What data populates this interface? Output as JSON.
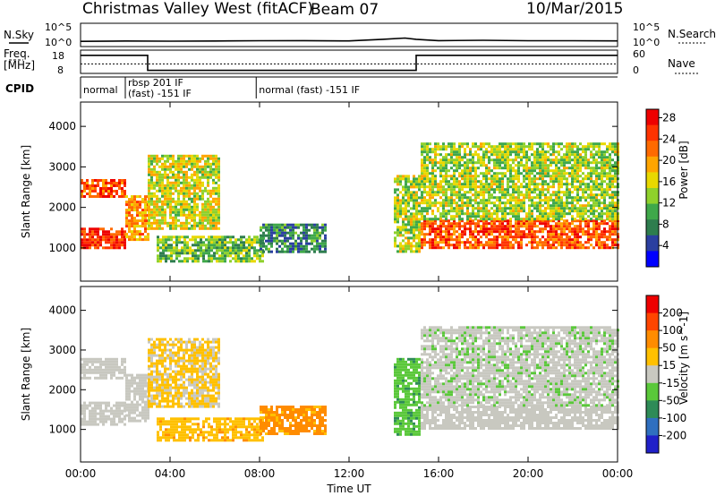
{
  "header": {
    "title": "Christmas Valley West (fitACF)",
    "beam": "Beam 07",
    "date": "10/Mar/2015"
  },
  "top_panels": {
    "nsky_label": "N.Sky",
    "nsearch_label": "N.Search",
    "noise_ticks": [
      "10^5",
      "10^0"
    ],
    "freq_label_1": "Freq.",
    "freq_label_2": "[MHz]",
    "freq_ticks": [
      "18",
      "8"
    ],
    "nave_label": "Nave",
    "nave_ticks": [
      "60",
      "0"
    ],
    "cpid_label": "CPID",
    "cpid_segments": [
      {
        "start": 0.0,
        "end": 2.0,
        "label": "normal"
      },
      {
        "start": 2.0,
        "end": 7.85,
        "label": "rbsp 201 IF",
        "label2": "(fast) -151 IF"
      },
      {
        "start": 7.85,
        "end": 24.0,
        "label": "normal (fast) -151 IF"
      }
    ]
  },
  "x_axis": {
    "label": "Time UT",
    "ticks": [
      "00:00",
      "04:00",
      "08:00",
      "12:00",
      "16:00",
      "20:00",
      "00:00"
    ]
  },
  "power_colorbar": {
    "label": "Power [dB]",
    "ticks": [
      "4",
      "8",
      "12",
      "16",
      "20",
      "24",
      "28"
    ],
    "colors": [
      "#0000ff",
      "#2b3fa0",
      "#2e7d4e",
      "#3fa84a",
      "#8fd12c",
      "#e8d800",
      "#ffa500",
      "#ff6a00",
      "#ff3300",
      "#ee0000"
    ]
  },
  "velocity_colorbar": {
    "label": "Velocity [m s^-1]",
    "ticks": [
      "200",
      "100",
      "50",
      "15",
      "-15",
      "-50",
      "-100",
      "-200"
    ],
    "colors": [
      "#2020c8",
      "#2f6fbf",
      "#2e8b57",
      "#5ac83a",
      "#c8c8c0",
      "#ffc000",
      "#ff8c00",
      "#ff4500",
      "#ee0000"
    ]
  },
  "chart_data": [
    {
      "type": "line",
      "title": "N.Sky / N.Search",
      "ylabel": "N.Sky",
      "y_scale": "log",
      "ylim": [
        1,
        100000
      ],
      "x": [
        0,
        2,
        4,
        6,
        8,
        10,
        12,
        13.5,
        14.5,
        15,
        16,
        18,
        20,
        22,
        24
      ],
      "values": [
        10,
        12,
        11,
        12,
        14,
        15,
        13,
        30,
        60,
        30,
        15,
        18,
        14,
        14,
        13
      ]
    },
    {
      "type": "line",
      "title": "Frequency",
      "ylabel": "Freq. [MHz]",
      "ylim": [
        8,
        18
      ],
      "series": [
        {
          "name": "Freq.",
          "x": [
            0,
            3.0,
            3.0,
            15.0,
            15.0,
            24
          ],
          "values": [
            16,
            16,
            9,
            9,
            16,
            16
          ]
        },
        {
          "name": "Nave",
          "x": [
            0,
            24
          ],
          "values": [
            12,
            12
          ]
        }
      ]
    },
    {
      "type": "heatmap",
      "title": "Power",
      "xlabel": "Time UT",
      "ylabel": "Slant Range [km]",
      "xlim": [
        0,
        24
      ],
      "ylim": [
        180,
        4600
      ],
      "y_ticks": [
        1000,
        2000,
        3000,
        4000
      ],
      "value_label": "Power [dB]",
      "value_range": [
        0,
        30
      ],
      "regions": [
        {
          "t0": 0.0,
          "t1": 2.0,
          "r0": 1000,
          "r1": 1500,
          "value": 26
        },
        {
          "t0": 0.0,
          "t1": 2.0,
          "r0": 2300,
          "r1": 2700,
          "value": 24
        },
        {
          "t0": 2.0,
          "t1": 3.0,
          "r0": 1200,
          "r1": 2300,
          "value": 20
        },
        {
          "t0": 3.0,
          "t1": 6.2,
          "r0": 1500,
          "r1": 3300,
          "value": 16
        },
        {
          "t0": 3.4,
          "t1": 8.2,
          "r0": 700,
          "r1": 1300,
          "value": 12
        },
        {
          "t0": 8.0,
          "t1": 11.0,
          "r0": 900,
          "r1": 1600,
          "value": 8
        },
        {
          "t0": 14.0,
          "t1": 15.2,
          "r0": 900,
          "r1": 2800,
          "value": 14
        },
        {
          "t0": 15.2,
          "t1": 24.0,
          "r0": 1000,
          "r1": 1700,
          "value": 24
        },
        {
          "t0": 15.2,
          "t1": 24.0,
          "r0": 1700,
          "r1": 3600,
          "value": 14
        }
      ]
    },
    {
      "type": "heatmap",
      "title": "Velocity",
      "xlabel": "Time UT",
      "ylabel": "Slant Range [km]",
      "xlim": [
        0,
        24
      ],
      "ylim": [
        180,
        4600
      ],
      "y_ticks": [
        1000,
        2000,
        3000,
        4000
      ],
      "value_label": "Velocity [m s^-1]",
      "value_range": [
        -200,
        200
      ],
      "regions": [
        {
          "t0": 0.0,
          "t1": 2.0,
          "r0": 1100,
          "r1": 1700,
          "value": 0
        },
        {
          "t0": 0.0,
          "t1": 2.0,
          "r0": 2300,
          "r1": 2800,
          "value": 0
        },
        {
          "t0": 2.0,
          "t1": 3.0,
          "r0": 1200,
          "r1": 2400,
          "value": 0
        },
        {
          "t0": 3.0,
          "t1": 6.2,
          "r0": 1600,
          "r1": 3300,
          "value": -20
        },
        {
          "t0": 3.4,
          "t1": 8.2,
          "r0": 700,
          "r1": 1300,
          "value": -40
        },
        {
          "t0": 8.0,
          "t1": 11.0,
          "r0": 900,
          "r1": 1600,
          "value": -60
        },
        {
          "t0": 14.0,
          "t1": 15.2,
          "r0": 900,
          "r1": 2800,
          "value": 40
        },
        {
          "t0": 15.2,
          "t1": 24.0,
          "r0": 1000,
          "r1": 1600,
          "value": 0
        },
        {
          "t0": 15.2,
          "t1": 24.0,
          "r0": 1600,
          "r1": 3600,
          "value": 5
        }
      ]
    }
  ]
}
